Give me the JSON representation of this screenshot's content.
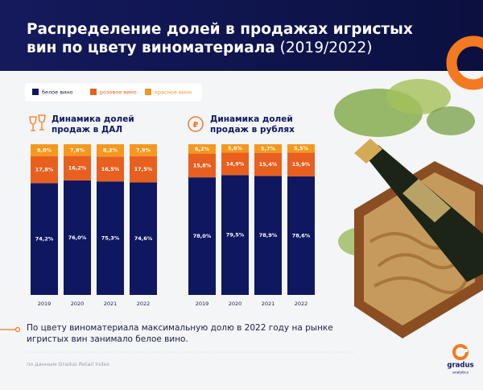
{
  "header": {
    "title_lines": [
      "Распределение долей в продажах игристых",
      "вин по цвету виноматериала"
    ],
    "title_suffix": "(2019/2022)"
  },
  "legend": [
    "белое вино",
    "розовое вино",
    "красное вино"
  ],
  "chart_data": [
    {
      "type": "bar",
      "stacked": true,
      "title_lines": [
        "Динамика долей",
        "продаж в ДАЛ"
      ],
      "categories": [
        "2019",
        "2020",
        "2021",
        "2022"
      ],
      "ylim": [
        0,
        100
      ],
      "series": [
        {
          "name": "белое вино",
          "color": "#0f1760",
          "values": [
            74.2,
            76.0,
            75.3,
            74.6
          ],
          "value_labels": [
            "74,2%",
            "76,0%",
            "75,3%",
            "74,6%"
          ]
        },
        {
          "name": "розовое вино",
          "color": "#e8601f",
          "values": [
            17.8,
            16.2,
            16.5,
            17.5
          ],
          "value_labels": [
            "17,8%",
            "16,2%",
            "16,5%",
            "17,5%"
          ]
        },
        {
          "name": "красное вино",
          "color": "#f6981d",
          "values": [
            8.0,
            7.8,
            8.2,
            7.9
          ],
          "value_labels": [
            "8,0%",
            "7,8%",
            "8,2%",
            "7,9%"
          ]
        }
      ]
    },
    {
      "type": "bar",
      "stacked": true,
      "title_lines": [
        "Динамика долей",
        "продаж в рублях"
      ],
      "categories": [
        "2019",
        "2020",
        "2021",
        "2022"
      ],
      "ylim": [
        0,
        100
      ],
      "series": [
        {
          "name": "белое вино",
          "color": "#0f1760",
          "values": [
            78.0,
            79.5,
            78.9,
            78.6
          ],
          "value_labels": [
            "78,0%",
            "79,5%",
            "78,9%",
            "78,6%"
          ]
        },
        {
          "name": "розовое вино",
          "color": "#e8601f",
          "values": [
            15.8,
            14.9,
            15.4,
            15.9
          ],
          "value_labels": [
            "15,8%",
            "14,9%",
            "15,4%",
            "15,9%"
          ]
        },
        {
          "name": "красное вино",
          "color": "#f6981d",
          "values": [
            6.2,
            5.6,
            5.7,
            5.5
          ],
          "value_labels": [
            "6,2%",
            "5,6%",
            "5,7%",
            "5,5%"
          ]
        }
      ]
    }
  ],
  "note": "По цвету виноматериала максимальную долю в 2022 году на рынке игристых вин занимало белое вино.",
  "source": "по данным Gradus Retail Index",
  "logo": {
    "name": "gradus",
    "sub": "analytics"
  }
}
